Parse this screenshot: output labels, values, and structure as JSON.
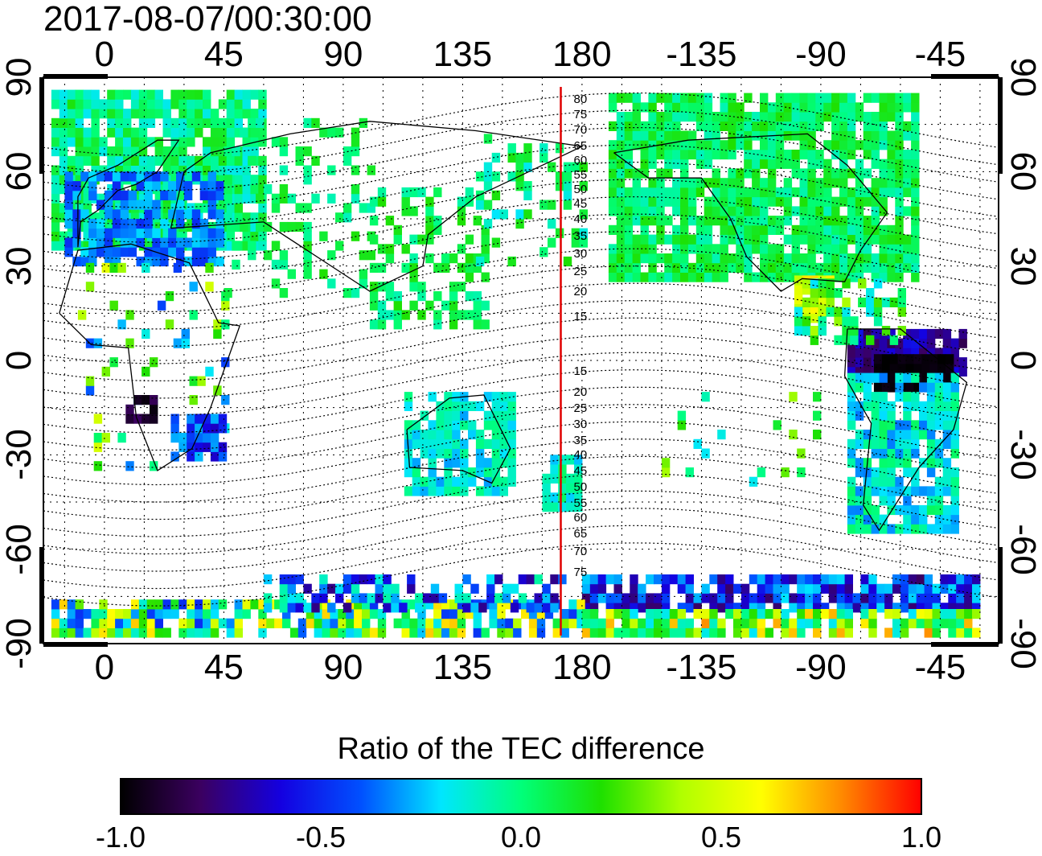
{
  "timestamp": "2017-08-07/00:30:00",
  "map": {
    "top_lon_ticks": [
      "0",
      "45",
      "90",
      "135",
      "180",
      "-135",
      "-90",
      "-45"
    ],
    "bottom_lon_ticks": [
      "0",
      "45",
      "90",
      "135",
      "180",
      "-135",
      "-90",
      "-45"
    ],
    "left_lat_ticks": [
      "90",
      "60",
      "30",
      "0",
      "-30",
      "-60",
      "-90"
    ],
    "right_lat_ticks": [
      "90",
      "60",
      "30",
      "0",
      "-30",
      "-60",
      "-90"
    ],
    "meridian_marker_lon": 172,
    "contour_labels_north": [
      "80",
      "75",
      "70",
      "65",
      "60",
      "55",
      "50",
      "45",
      "40",
      "35",
      "30",
      "25",
      "20",
      "15"
    ],
    "contour_labels_south": [
      "15",
      "20",
      "25",
      "30",
      "35",
      "40",
      "45",
      "50",
      "55",
      "60",
      "65",
      "70",
      "75"
    ],
    "marker_color": "#e00000",
    "grid": "dotted"
  },
  "colorbar": {
    "title": "Ratio of the TEC difference",
    "min": -1.0,
    "max": 1.0,
    "ticks": [
      "-1.0",
      "-0.5",
      "0.0",
      "0.5",
      "1.0"
    ],
    "colors": [
      "#000000",
      "#3b0060",
      "#1400e0",
      "#0050ff",
      "#00e6ff",
      "#00ff7a",
      "#1ee000",
      "#b0ff00",
      "#ffff00",
      "#ff8a00",
      "#ff0000"
    ]
  }
}
